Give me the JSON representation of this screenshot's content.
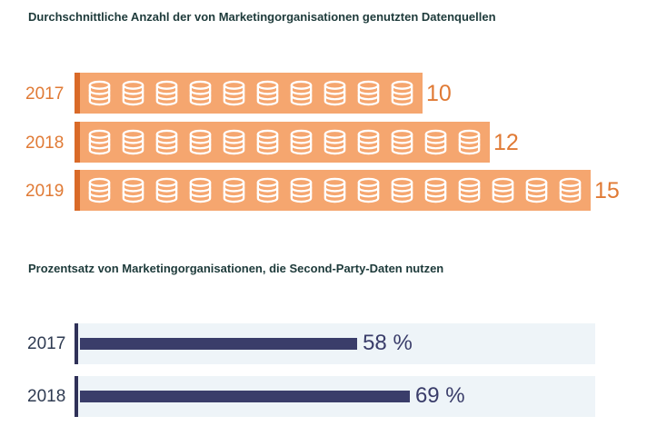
{
  "chart_data": [
    {
      "type": "bar",
      "orientation": "horizontal",
      "title": "Durchschnittliche Anzahl der von Marketingorganisationen genutzten Datenquellen",
      "categories": [
        "2017",
        "2018",
        "2019"
      ],
      "values": [
        10,
        12,
        15
      ],
      "value_labels": [
        "10",
        "12",
        "15"
      ],
      "icon": "database-icon",
      "colors": {
        "bar": "#f5a66f",
        "accent": "#d96a28",
        "text": "#e07a35",
        "icon_stroke": "#ffffff"
      }
    },
    {
      "type": "bar",
      "orientation": "horizontal",
      "title": "Prozentsatz von Marketingorganisationen, die Second-Party-Daten nutzen",
      "categories": [
        "2017",
        "2018"
      ],
      "values": [
        58,
        69
      ],
      "value_labels": [
        "58 %",
        "69 %"
      ],
      "xlim": [
        0,
        100
      ],
      "colors": {
        "bar": "#3a3d6a",
        "axis": "#2f3158",
        "track": "#eef4f8",
        "text": "#2f3b52"
      }
    }
  ]
}
